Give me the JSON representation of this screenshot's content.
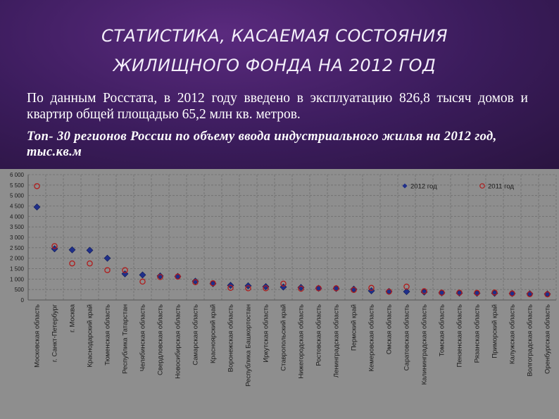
{
  "slide": {
    "title_line1": "СТАТИСТИКА, КАСАЕМАЯ СОСТОЯНИЯ",
    "title_line2": "ЖИЛИЩНОГО ФОНДА НА 2012 ГОД",
    "paragraph": "По данным Росстата, в 2012 году введено в эксплуатацию 826,8 тысяч домов и квартир общей площадью 65,2 млн кв. метров.",
    "subtitle": "Топ- 30 регионов России по объему ввода индустриального жилья на 2012 год, тыс.кв.м"
  },
  "colors": {
    "series_2012": "#1f2f8a",
    "series_2011": "#b01b1b",
    "plot_bg": "#8e8e8e",
    "grid": "#6e6e6e"
  },
  "chart_data": {
    "type": "scatter",
    "title": "",
    "xlabel": "",
    "ylabel": "",
    "ylim": [
      0,
      6000
    ],
    "yticks": [
      0,
      500,
      1000,
      1500,
      2000,
      2500,
      3000,
      3500,
      4000,
      4500,
      5000,
      5500,
      6000
    ],
    "ytick_labels": [
      "0",
      "500",
      "1 000",
      "1 500",
      "2 000",
      "2 500",
      "3 000",
      "3 500",
      "4 000",
      "4 500",
      "5 000",
      "5 500",
      "6 000"
    ],
    "grid": true,
    "legend_position": "top-right",
    "categories": [
      "Московская область",
      "г. Санкт-Петербург",
      "г. Москва",
      "Краснодарский край",
      "Тюменская область",
      "Республика Татарстан",
      "Челябинская область",
      "Свердловская область",
      "Новосибирская область",
      "Самарская область",
      "Красноярский край",
      "Воронежская область",
      "Республика Башкортостан",
      "Иркутская область",
      "Ставропольский край",
      "Нижегородская область",
      "Ростовская область",
      "Ленинградская область",
      "Пермский край",
      "Кемеровская область",
      "Омская область",
      "Саратовская область",
      "Калининградская область",
      "Томская область",
      "Пензенская область",
      "Рязанская область",
      "Приморский край",
      "Калужская область",
      "Волгоградская область",
      "Оренбургская область"
    ],
    "series": [
      {
        "name": "2012 год",
        "marker": "diamond",
        "values": [
          4450,
          2450,
          2400,
          2380,
          2000,
          1250,
          1200,
          1150,
          1130,
          900,
          780,
          700,
          680,
          640,
          620,
          600,
          560,
          550,
          520,
          440,
          410,
          400,
          380,
          340,
          330,
          320,
          320,
          310,
          300,
          290
        ]
      },
      {
        "name": "2011 год",
        "marker": "circle",
        "values": [
          5450,
          2580,
          1750,
          1750,
          1430,
          1430,
          880,
          1100,
          1120,
          850,
          800,
          580,
          560,
          560,
          780,
          540,
          560,
          560,
          480,
          580,
          400,
          640,
          420,
          350,
          350,
          340,
          360,
          310,
          280,
          270
        ]
      }
    ]
  }
}
